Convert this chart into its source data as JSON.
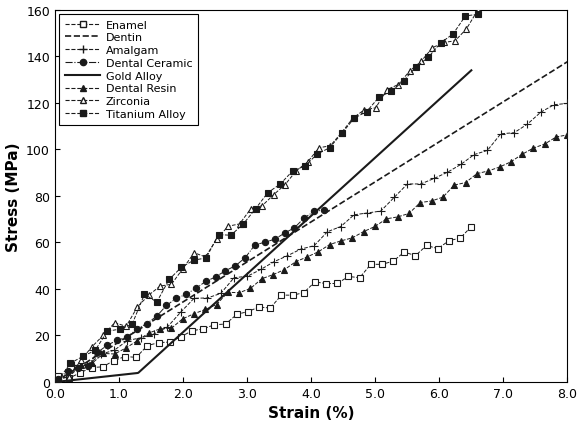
{
  "title": "",
  "xlabel": "Strain (%)",
  "ylabel": "Stress (MPa)",
  "xlim": [
    0.0,
    8.0
  ],
  "ylim": [
    0,
    160
  ],
  "xticks": [
    0.0,
    1.0,
    2.0,
    3.0,
    4.0,
    5.0,
    6.0,
    7.0,
    8.0
  ],
  "yticks": [
    0,
    20,
    40,
    60,
    80,
    100,
    120,
    140,
    160
  ],
  "series": [
    {
      "name": "Enamel",
      "marker": "s",
      "fillstyle": "none",
      "linestyle": "--",
      "slope": 10.0,
      "x_start": 0.05,
      "x_end": 6.5,
      "n": 38,
      "noise": 1.2,
      "ms": 4.5,
      "lw": 0.9
    },
    {
      "name": "Dentin",
      "marker": "none",
      "fillstyle": "none",
      "linestyle": "--",
      "slope": 17.2,
      "x_start": 0.0,
      "x_end": 8.0,
      "n": 0,
      "noise": 0,
      "ms": 0,
      "lw": 1.2
    },
    {
      "name": "Amalgam",
      "marker": "+",
      "fillstyle": "full",
      "linestyle": "--",
      "slope": 15.0,
      "x_start": 0.3,
      "x_end": 8.0,
      "n": 38,
      "noise": 1.5,
      "ms": 5.5,
      "lw": 0.9
    },
    {
      "name": "Dental Ceramic",
      "marker": "o",
      "fillstyle": "full",
      "linestyle": "-.",
      "slope": 18.0,
      "x_start": 0.05,
      "x_end": 4.2,
      "n": 28,
      "noise": 1.2,
      "ms": 4.5,
      "lw": 0.9
    },
    {
      "name": "Gold Alloy",
      "marker": "none",
      "fillstyle": "none",
      "linestyle": "-",
      "slope": 25.0,
      "x_start": 0.0,
      "x_end": 6.5,
      "n": 0,
      "noise": 0,
      "ms": 0,
      "lw": 1.5,
      "nonlinear": true,
      "nl_break": 1.3,
      "nl_low_slope": 3.0
    },
    {
      "name": "Dental Resin",
      "marker": "^",
      "fillstyle": "full",
      "linestyle": "--",
      "slope": 13.5,
      "x_start": 0.05,
      "x_end": 8.0,
      "n": 46,
      "noise": 1.2,
      "ms": 4.5,
      "lw": 0.9
    },
    {
      "name": "Zirconia",
      "marker": "^",
      "fillstyle": "none",
      "linestyle": "--",
      "slope": 24.0,
      "x_start": 0.05,
      "x_end": 6.6,
      "n": 38,
      "noise": 1.8,
      "ms": 5.0,
      "lw": 0.9
    },
    {
      "name": "Titanium Alloy",
      "marker": "s",
      "fillstyle": "full",
      "linestyle": "--",
      "slope": 24.0,
      "x_start": 0.05,
      "x_end": 6.6,
      "n": 35,
      "noise": 2.0,
      "ms": 4.5,
      "lw": 0.9
    }
  ],
  "color": "#1a1a1a",
  "background_color": "#ffffff"
}
